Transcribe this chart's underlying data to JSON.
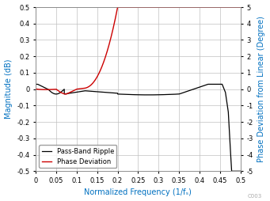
{
  "title": "",
  "xlabel": "Normalized Frequency (1/fₛ)",
  "ylabel_left": "Magnitude (dB)",
  "ylabel_right": "Phase Deviation from Linear (Degree)",
  "xlim": [
    0,
    0.5
  ],
  "ylim_left": [
    -0.5,
    0.5
  ],
  "ylim_right": [
    -5,
    5
  ],
  "xticks": [
    0,
    0.05,
    0.1,
    0.15,
    0.2,
    0.25,
    0.3,
    0.35,
    0.4,
    0.45,
    0.5
  ],
  "yticks_left": [
    -0.5,
    -0.4,
    -0.3,
    -0.2,
    -0.1,
    0.0,
    0.1,
    0.2,
    0.3,
    0.4,
    0.5
  ],
  "yticks_right": [
    -5,
    -4,
    -3,
    -2,
    -1,
    0,
    1,
    2,
    3,
    4,
    5
  ],
  "line_black_color": "#000000",
  "line_red_color": "#cc0000",
  "legend_loc": "lower left",
  "legend_labels": [
    "Pass-Band Ripple",
    "Phase Deviation"
  ],
  "grid_color": "#c0c0c0",
  "label_color": "#0070c0",
  "watermark": "C003",
  "background_color": "#ffffff",
  "tick_label_color": "#000000",
  "label_fontsize": 7,
  "tick_fontsize": 6
}
